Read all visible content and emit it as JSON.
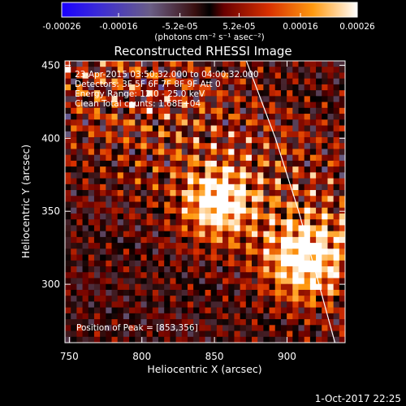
{
  "colorbar": {
    "ticks": [
      {
        "value": -0.00026,
        "label": "-0.00026"
      },
      {
        "value": -0.00016,
        "label": "-0.00016"
      },
      {
        "value": -5.2e-05,
        "label": "-5.2e-05"
      },
      {
        "value": 5.2e-05,
        "label": "5.2e-05"
      },
      {
        "value": 0.00016,
        "label": "0.00016"
      },
      {
        "value": 0.00026,
        "label": "0.00026"
      }
    ],
    "range": [
      -0.00026,
      0.00026
    ],
    "units_label": "(photons cm⁻² s⁻¹ asec⁻²)"
  },
  "chart_data": {
    "type": "heatmap",
    "title": "Reconstructed RHESSI Image",
    "xlabel": "Heliocentric X (arcsec)",
    "ylabel": "Heliocentric Y (arcsec)",
    "xlim": [
      747,
      940
    ],
    "ylim": [
      260,
      453
    ],
    "x_ticks": [
      {
        "value": 750,
        "label": "750"
      },
      {
        "value": 800,
        "label": "800"
      },
      {
        "value": 850,
        "label": "850"
      },
      {
        "value": 900,
        "label": "900"
      }
    ],
    "y_ticks": [
      {
        "value": 300,
        "label": "300"
      },
      {
        "value": 350,
        "label": "350"
      },
      {
        "value": 400,
        "label": "400"
      },
      {
        "value": 450,
        "label": "450"
      }
    ],
    "info_lines": [
      "23-Apr-2015 03:50:32.000 to 04:00:32.000",
      "Detectors: 3F 5F 6F 7F 8F 9F  Att 0",
      "Energy Range: 12.0 - 25.0 keV",
      "Clean     Total counts: 1.68E+04"
    ],
    "peak_label": "Position of Peak = [853,356]",
    "peak_position": [
      853,
      356
    ],
    "peaks": [
      {
        "x": 853,
        "y": 356,
        "sigma": 8
      },
      {
        "x": 912,
        "y": 318,
        "sigma": 9
      }
    ],
    "limb_arc": [
      [
        872,
        453
      ],
      [
        892,
        400
      ],
      [
        908,
        350
      ],
      [
        922,
        300
      ],
      [
        933,
        260
      ]
    ],
    "colormap": "red temperature",
    "grid": false
  },
  "timestamp": "1-Oct-2017 22:25"
}
